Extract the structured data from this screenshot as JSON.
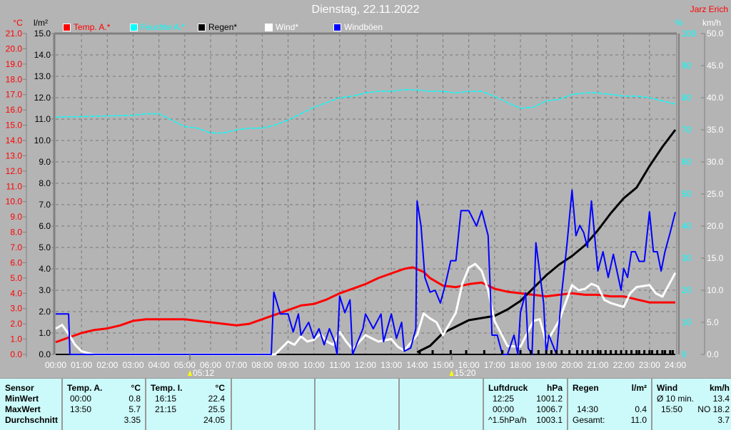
{
  "title": "Dienstag, 22.11.2022",
  "author": "Jarz Erich",
  "legend": [
    {
      "label": "Temp. A.*",
      "color": "#ff0000"
    },
    {
      "label": "Feuchte A.*",
      "color": "#00ffff"
    },
    {
      "label": "Regen*",
      "color": "#000000"
    },
    {
      "label": "Wind*",
      "color": "#ffffff"
    },
    {
      "label": "Windböen",
      "color": "#0000ff"
    }
  ],
  "chart_data": {
    "type": "line",
    "title": "Dienstag, 22.11.2022",
    "xlabel": "",
    "x_ticks": [
      "00:00",
      "01:00",
      "02:00",
      "03:00",
      "04:00",
      "05:00",
      "06:00",
      "07:00",
      "08:00",
      "09:00",
      "10:00",
      "11:00",
      "12:00",
      "13:00",
      "14:00",
      "15:00",
      "16:00",
      "17:00",
      "18:00",
      "19:00",
      "20:00",
      "21:00",
      "22:00",
      "23:00",
      "24:00"
    ],
    "xlim_hours": [
      0,
      24
    ],
    "grid": true,
    "legend_position": "top",
    "axes": {
      "temp": {
        "unit": "°C",
        "ylim": [
          0,
          21
        ],
        "ticks": [
          "21.0",
          "20.0",
          "19.0",
          "18.0",
          "17.0",
          "16.0",
          "15.0",
          "14.0",
          "13.0",
          "12.0",
          "11.0",
          "10.0",
          "9.0",
          "8.0",
          "7.0",
          "6.0",
          "5.0",
          "4.0",
          "3.0",
          "2.0",
          "1.0",
          "0.0"
        ],
        "color": "#ff0000"
      },
      "rain": {
        "unit": "l/m²",
        "ylim": [
          0,
          15
        ],
        "ticks": [
          "15.0",
          "14.0",
          "13.0",
          "12.0",
          "11.0",
          "10.0",
          "9.0",
          "8.0",
          "7.0",
          "6.0",
          "5.0",
          "4.0",
          "3.0",
          "2.0",
          "1.0",
          "0.0"
        ],
        "color": "#000000"
      },
      "hum": {
        "unit": "%",
        "ylim": [
          0,
          100
        ],
        "ticks": [
          "100",
          "90",
          "80",
          "70",
          "60",
          "50",
          "40",
          "30",
          "20",
          "10",
          "0"
        ],
        "color": "#00ffff"
      },
      "wind": {
        "unit": "km/h",
        "ylim": [
          0,
          50
        ],
        "ticks": [
          "50.0",
          "45.0",
          "40.0",
          "35.0",
          "30.0",
          "25.0",
          "20.0",
          "15.0",
          "10.0",
          "5.0",
          "0.0"
        ],
        "color": "#ffffff"
      }
    },
    "series": [
      {
        "name": "Temp. A.*",
        "axis": "temp",
        "color": "#ff0000",
        "x": [
          0,
          0.5,
          1,
          1.5,
          2,
          2.5,
          3,
          3.5,
          4,
          5,
          6,
          6.5,
          7,
          7.5,
          8,
          8.5,
          9,
          9.5,
          10,
          10.5,
          11,
          11.5,
          12,
          12.5,
          13,
          13.5,
          13.83,
          14.25,
          14.5,
          15,
          15.5,
          16,
          16.5,
          17,
          17.5,
          18,
          18.5,
          19,
          19.5,
          20,
          20.5,
          21,
          21.5,
          22,
          22.5,
          23,
          23.5,
          24
        ],
        "y": [
          0.8,
          1.1,
          1.4,
          1.6,
          1.7,
          1.9,
          2.2,
          2.3,
          2.3,
          2.3,
          2.1,
          2.0,
          1.9,
          2.0,
          2.3,
          2.6,
          2.9,
          3.2,
          3.3,
          3.6,
          4.0,
          4.3,
          4.6,
          5.0,
          5.3,
          5.6,
          5.7,
          5.4,
          5.0,
          4.5,
          4.4,
          4.6,
          4.7,
          4.3,
          4.1,
          4.0,
          3.9,
          3.8,
          3.9,
          4.0,
          3.9,
          3.9,
          3.8,
          3.8,
          3.6,
          3.4,
          3.4,
          3.4
        ]
      },
      {
        "name": "Feuchte A.*",
        "axis": "hum",
        "color": "#00ffff",
        "x": [
          0,
          0.3,
          3,
          3.5,
          4,
          4.5,
          5,
          5.5,
          6,
          6.5,
          7,
          7.5,
          8,
          8.5,
          9,
          9.5,
          10,
          10.5,
          11,
          11.5,
          12,
          12.5,
          13,
          13.5,
          14,
          14.5,
          15,
          15.5,
          16,
          16.5,
          17,
          17.5,
          18,
          18.5,
          19,
          19.5,
          20,
          20.5,
          21,
          21.5,
          22,
          22.5,
          23,
          23.5,
          24
        ],
        "y": [
          74,
          74,
          74.5,
          75,
          75,
          73,
          71,
          70.5,
          69,
          69,
          70,
          70.5,
          70.5,
          71.5,
          73,
          75,
          77,
          78.5,
          80,
          80.5,
          81.5,
          82,
          82,
          82.5,
          82.4,
          82,
          82,
          81.5,
          82,
          82,
          80.4,
          78.5,
          76.7,
          77,
          79,
          79.5,
          81,
          81.5,
          81.5,
          81,
          80.5,
          80.5,
          80,
          79,
          78
        ]
      },
      {
        "name": "Regen*",
        "axis": "rain",
        "color": "#000000",
        "x": [
          14,
          14.5,
          15,
          15.5,
          16,
          16.5,
          17,
          17.5,
          18,
          18.5,
          19,
          19.5,
          20,
          20.5,
          21,
          21.5,
          22,
          22.5,
          23,
          23.5,
          24
        ],
        "y": [
          0.1,
          0.4,
          1.0,
          1.3,
          1.6,
          1.7,
          1.8,
          2.1,
          2.5,
          3.1,
          3.7,
          4.2,
          4.6,
          5.1,
          5.8,
          6.6,
          7.3,
          7.8,
          8.8,
          9.7,
          10.5
        ]
      },
      {
        "name": "Wind*",
        "axis": "wind",
        "color": "#ffffff",
        "x": [
          0,
          0.25,
          0.5,
          0.75,
          1,
          1.25,
          1.5,
          8.5,
          9,
          9.25,
          9.5,
          9.75,
          10,
          10.25,
          10.5,
          10.75,
          11,
          11.25,
          11.5,
          12,
          12.25,
          12.5,
          13,
          13.25,
          13.5,
          14,
          14.25,
          14.5,
          14.75,
          15,
          15.5,
          15.75,
          16,
          16.25,
          16.5,
          16.75,
          17,
          17.5,
          18,
          18.5,
          18.75,
          19,
          19.25,
          19.5,
          20,
          20.25,
          20.5,
          20.75,
          21,
          21.25,
          21.5,
          22,
          22.25,
          22.5,
          23,
          23.25,
          23.5,
          24
        ],
        "y": [
          4.0,
          4.6,
          3.2,
          1.5,
          0.5,
          0.2,
          0,
          0,
          2.0,
          1.5,
          2.8,
          2.0,
          2.3,
          3.2,
          2.0,
          1.5,
          3.5,
          2.0,
          0.8,
          3.0,
          2.5,
          2.0,
          2.4,
          1.2,
          0.6,
          3.0,
          6.4,
          5.6,
          5.0,
          3.0,
          6.5,
          11.0,
          13.5,
          14.1,
          13.0,
          10.0,
          5.2,
          1.3,
          1.2,
          5.2,
          5.5,
          1.8,
          3.5,
          5.3,
          10.8,
          10.0,
          10.2,
          11.0,
          10.6,
          8.5,
          8.0,
          7.4,
          9.5,
          10.5,
          10.8,
          9.5,
          9.0,
          12.7
        ]
      },
      {
        "name": "Windböen",
        "axis": "wind",
        "color": "#0000ff",
        "x": [
          0,
          0.5,
          0.55,
          8.35,
          8.45,
          8.7,
          9,
          9.2,
          9.4,
          9.5,
          9.8,
          10,
          10.2,
          10.4,
          10.6,
          10.8,
          10.9,
          11,
          11.2,
          11.4,
          11.5,
          11.9,
          12,
          12.3,
          12.6,
          12.7,
          13,
          13.2,
          13.4,
          13.5,
          13.75,
          13.95,
          14,
          14.15,
          14.3,
          14.5,
          14.7,
          14.9,
          15.1,
          15.3,
          15.5,
          15.7,
          15.9,
          16,
          16.3,
          16.5,
          16.75,
          16.9,
          17.1,
          17.3,
          17.5,
          17.75,
          17.9,
          18,
          18.2,
          18.3,
          18.45,
          18.6,
          18.9,
          19,
          19.1,
          19.4,
          19.6,
          19.8,
          20,
          20.15,
          20.3,
          20.45,
          20.6,
          20.75,
          21,
          21.2,
          21.4,
          21.6,
          21.9,
          22,
          22.15,
          22.3,
          22.45,
          22.6,
          22.8,
          23,
          23.15,
          23.3,
          23.45,
          23.6,
          23.8,
          24
        ],
        "y": [
          6.3,
          6.3,
          0,
          0,
          9.7,
          6.3,
          6.3,
          3.5,
          6.3,
          3.0,
          5.0,
          2.5,
          4.0,
          1.5,
          4.0,
          2.0,
          0,
          9.1,
          6.5,
          8.5,
          0,
          4.0,
          6.3,
          4.0,
          6.3,
          2.0,
          6.3,
          2.5,
          5.0,
          0.5,
          1.0,
          4.0,
          23.9,
          20.0,
          12.0,
          9.7,
          10.0,
          8.0,
          11.0,
          14.6,
          14.6,
          22.4,
          22.4,
          22.4,
          20.0,
          22.4,
          18.5,
          3.0,
          3.0,
          0,
          0,
          3.0,
          0,
          6.5,
          9.6,
          1.0,
          0,
          17.4,
          8.0,
          0,
          3.0,
          0,
          9.6,
          17.0,
          25.6,
          18.5,
          20.1,
          19.0,
          16.7,
          23.9,
          13.0,
          16.0,
          12.0,
          15.6,
          10.0,
          13.4,
          12.0,
          16.0,
          16.0,
          14.5,
          14.5,
          22.2,
          16.0,
          16.0,
          13.0,
          16.0,
          19.0,
          22.2
        ]
      }
    ],
    "rain_events_hours": [
      14.1,
      14.6,
      15.3,
      15.9,
      16.6,
      17.3,
      18.0,
      18.4,
      18.7,
      19.0,
      19.2,
      19.4,
      19.6,
      19.9,
      20.2,
      20.4,
      20.6,
      20.8,
      21.0,
      21.1,
      21.3,
      21.5,
      21.7,
      21.9,
      22.1,
      22.3,
      22.5,
      22.6,
      22.8,
      23.0,
      23.1,
      23.3,
      23.5,
      23.6,
      23.8,
      23.9
    ],
    "annotations": {
      "sunrise": "05:12",
      "sunset": "15:20"
    }
  },
  "stats": {
    "sensor": {
      "header": "Sensor",
      "rows": [
        "MinWert",
        "MaxWert",
        "Durchschnitt"
      ]
    },
    "temp_a": {
      "header": "Temp. A.",
      "unit": "°C",
      "min_time": "00:00",
      "min": "0.8",
      "max_time": "13:50",
      "max": "5.7",
      "avg": "3.35"
    },
    "temp_i": {
      "header": "Temp. I.",
      "unit": "°C",
      "min_time": "16:15",
      "min": "22.4",
      "max_time": "21:15",
      "max": "25.5",
      "avg": "24.05"
    },
    "pressure": {
      "header": "Luftdruck",
      "unit": "hPa",
      "r1_label": "12:25",
      "r1": "1001.2",
      "r2_label": "00:00",
      "r2": "1006.7",
      "r3_label": "^1.5hPa/h",
      "r3": "1003.1"
    },
    "rain": {
      "header": "Regen",
      "unit": "l/m²",
      "r2_label": "14:30",
      "r2": "0.4",
      "r3_label": "Gesamt:",
      "r3": "11.0"
    },
    "wind": {
      "header": "Wind",
      "unit": "km/h",
      "r1_label": "Ø 10 min.",
      "r1": "13.4",
      "r2_label": "15:50",
      "r2": "NO 18.2",
      "r3": "3.7"
    }
  }
}
